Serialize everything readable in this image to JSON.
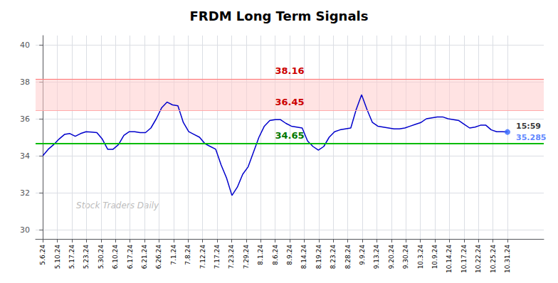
{
  "chart_data": {
    "type": "line",
    "title": "FRDM Long Term Signals",
    "x": [
      0,
      0.3721,
      0.7442,
      1.1163,
      1.4884,
      1.8605,
      2.2326,
      2.6047,
      2.9767,
      3.3488,
      3.7209,
      4.093,
      4.4651,
      4.8372,
      5.2093,
      5.5814,
      5.9535,
      6.3256,
      6.6977,
      7.0698,
      7.4419,
      7.814,
      8.186,
      8.5581,
      8.9302,
      9.3023,
      9.6744,
      10.0465,
      10.4186,
      10.7907,
      11.1628,
      11.5349,
      11.907,
      12.2791,
      12.6512,
      13.0233,
      13.3953,
      13.7674,
      14.1395,
      14.5116,
      14.8837,
      15.2558,
      15.6279,
      16,
      16.3721,
      16.7442,
      17.1163,
      17.4884,
      17.8605,
      18.2326,
      18.6047,
      18.9767,
      19.3488,
      19.7209,
      20.093,
      20.4651,
      20.8372,
      21.2093,
      21.5814,
      21.9535,
      22.3256,
      22.6977,
      23.0698,
      23.4419,
      23.814,
      24.186,
      24.5581,
      24.9302,
      25.3023,
      25.6744,
      26.0465,
      26.4186,
      26.7907,
      27.1628,
      27.5349,
      27.907,
      28.2791,
      28.6512,
      29.0233,
      29.3953,
      29.7674,
      30.1395,
      30.5116,
      30.8837,
      31.2558,
      31.6279,
      32
    ],
    "values": [
      34.0,
      34.35,
      34.6,
      34.9,
      35.15,
      35.2,
      35.05,
      35.2,
      35.3,
      35.28,
      35.25,
      34.9,
      34.35,
      34.35,
      34.6,
      35.1,
      35.3,
      35.3,
      35.25,
      35.25,
      35.5,
      36.0,
      36.6,
      36.9,
      36.75,
      36.7,
      35.8,
      35.3,
      35.15,
      35.0,
      34.65,
      34.5,
      34.35,
      33.5,
      32.8,
      31.85,
      32.3,
      33.0,
      33.4,
      34.2,
      35.0,
      35.6,
      35.9,
      35.95,
      35.95,
      35.75,
      35.6,
      35.55,
      35.5,
      34.8,
      34.5,
      34.3,
      34.5,
      35.0,
      35.3,
      35.4,
      35.45,
      35.5,
      36.5,
      37.3,
      36.5,
      35.8,
      35.6,
      35.55,
      35.5,
      35.45,
      35.45,
      35.5,
      35.6,
      35.7,
      35.8,
      36.0,
      36.05,
      36.1,
      36.1,
      36.0,
      35.95,
      35.9,
      35.7,
      35.5,
      35.55,
      35.65,
      35.65,
      35.4,
      35.3,
      35.3,
      35.285
    ],
    "color": "#0000cc",
    "xlim": [
      -0.5,
      34.5
    ],
    "xticks": [
      {
        "value": 0,
        "label": "5.6.24"
      },
      {
        "value": 1,
        "label": "5.10.24"
      },
      {
        "value": 2,
        "label": "5.17.24"
      },
      {
        "value": 3,
        "label": "5.23.24"
      },
      {
        "value": 4,
        "label": "5.30.24"
      },
      {
        "value": 5,
        "label": "6.10.24"
      },
      {
        "value": 6,
        "label": "6.17.24"
      },
      {
        "value": 7,
        "label": "6.21.24"
      },
      {
        "value": 8,
        "label": "6.26.24"
      },
      {
        "value": 9,
        "label": "7.1.24"
      },
      {
        "value": 10,
        "label": "7.8.24"
      },
      {
        "value": 11,
        "label": "7.12.24"
      },
      {
        "value": 12,
        "label": "7.17.24"
      },
      {
        "value": 13,
        "label": "7.23.24"
      },
      {
        "value": 14,
        "label": "7.29.24"
      },
      {
        "value": 15,
        "label": "8.1.24"
      },
      {
        "value": 16,
        "label": "8.6.24"
      },
      {
        "value": 17,
        "label": "8.9.24"
      },
      {
        "value": 18,
        "label": "8.14.24"
      },
      {
        "value": 19,
        "label": "8.19.24"
      },
      {
        "value": 20,
        "label": "8.23.24"
      },
      {
        "value": 21,
        "label": "8.28.24"
      },
      {
        "value": 22,
        "label": "9.9.24"
      },
      {
        "value": 23,
        "label": "9.13.24"
      },
      {
        "value": 24,
        "label": "9.20.24"
      },
      {
        "value": 25,
        "label": "9.30.24"
      },
      {
        "value": 26,
        "label": "10.3.24"
      },
      {
        "value": 27,
        "label": "10.9.24"
      },
      {
        "value": 28,
        "label": "10.14.24"
      },
      {
        "value": 29,
        "label": "10.17.24"
      },
      {
        "value": 30,
        "label": "10.22.24"
      },
      {
        "value": 31,
        "label": "10.25.24"
      },
      {
        "value": 32,
        "label": "10.31.24"
      }
    ],
    "ylim": [
      29.5,
      40.5
    ],
    "yticks": [
      30,
      32,
      34,
      36,
      38,
      40
    ],
    "grid": true,
    "band": {
      "from": 36.45,
      "to": 38.16,
      "color": "#ffcccc"
    },
    "hlines": [
      {
        "value": 38.16,
        "color": "#ff7777",
        "label": "38.16",
        "label_color": "#cc0000"
      },
      {
        "value": 36.45,
        "color": "#ffaaaa",
        "label": "36.45",
        "label_color": "#cc0000"
      },
      {
        "value": 34.65,
        "color": "#00bb00",
        "label": "34.65",
        "label_color": "#007700"
      }
    ],
    "last_point": {
      "x": 32,
      "y": 35.285,
      "color": "#3366ff",
      "time": "15:59",
      "label": "35.285"
    },
    "watermark": "Stock Traders Daily"
  }
}
